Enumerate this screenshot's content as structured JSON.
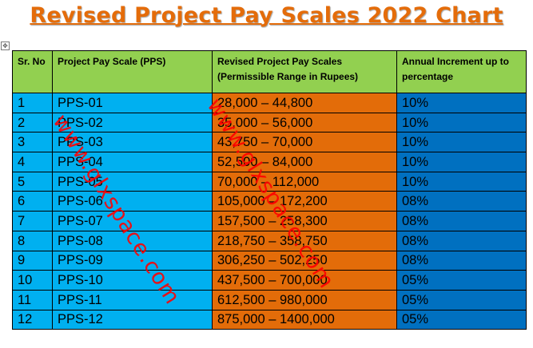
{
  "title": "Revised Project Pay Scales 2022 Chart",
  "watermark": "www.glxspace.com",
  "table": {
    "headers": {
      "sr": "Sr. No",
      "pps": "Project Pay Scale (PPS)",
      "range": "Revised Project Pay Scales (Permissible Range in Rupees)",
      "increment": "Annual Increment up to percentage"
    },
    "rows": [
      {
        "sr": "1",
        "pps": "PPS-01",
        "range": "28,000 – 44,800",
        "increment": "10%"
      },
      {
        "sr": "2",
        "pps": "PPS-02",
        "range": "35,000 – 56,000",
        "increment": "10%"
      },
      {
        "sr": "3",
        "pps": "PPS-03",
        "range": "43,750 – 70,000",
        "increment": "10%"
      },
      {
        "sr": "4",
        "pps": "PPS-04",
        "range": "52,500 – 84,000",
        "increment": "10%"
      },
      {
        "sr": "5",
        "pps": "PPS-05",
        "range": "70,000 – 112,000",
        "increment": "10%"
      },
      {
        "sr": "6",
        "pps": "PPS-06",
        "range": "105,000 – 172,200",
        "increment": "08%"
      },
      {
        "sr": "7",
        "pps": "PPS-07",
        "range": "157,500 – 258,300",
        "increment": "08%"
      },
      {
        "sr": "8",
        "pps": "PPS-08",
        "range": "218,750 – 358,750",
        "increment": "08%"
      },
      {
        "sr": "9",
        "pps": "PPS-09",
        "range": "306,250 – 502,250",
        "increment": "08%"
      },
      {
        "sr": "10",
        "pps": "PPS-10",
        "range": "437,500 – 700,000",
        "increment": "05%"
      },
      {
        "sr": "11",
        "pps": "PPS-11",
        "range": "612,500 – 980,000",
        "increment": "05%"
      },
      {
        "sr": "12",
        "pps": "PPS-12",
        "range": "875,000 – 1400,000",
        "increment": "05%"
      }
    ]
  },
  "colors": {
    "title": "#e46c0a",
    "header_bg": "#92d050",
    "col_sr_bg": "#00b0f0",
    "col_pps_bg": "#00b0f0",
    "col_range_bg": "#e36c09",
    "col_increment_bg": "#0070c0",
    "watermark": "#ff0000"
  },
  "icons": {
    "table_move_handle": "move-arrows-icon"
  }
}
